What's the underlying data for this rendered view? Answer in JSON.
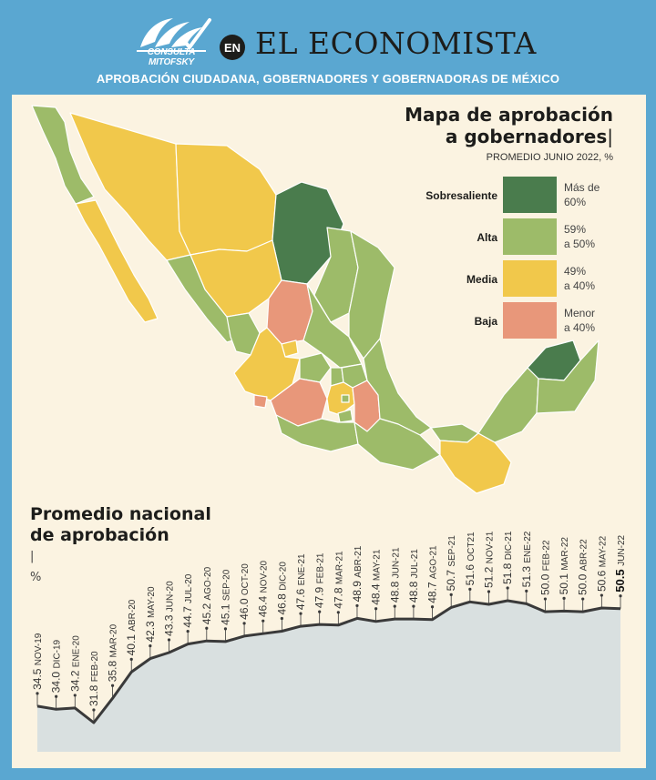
{
  "header": {
    "logo_text": "CONSULTA MITOFSKY",
    "badge": "EN",
    "brand": "EL ECONOMISTA",
    "subtitle": "APROBACIÓN CIUDADANA, GOBERNADORES Y GOBERNADORAS DE MÉXICO"
  },
  "map": {
    "title_line1": "Mapa de aprobación",
    "title_line2": "a gobernadores",
    "subtitle": "PROMEDIO JUNIO 2022, %",
    "legend": [
      {
        "label": "Sobresaliente",
        "desc1": "Más de",
        "desc2": "60%",
        "color": "#4a7c4d"
      },
      {
        "label": "Alta",
        "desc1": "59%",
        "desc2": "a 50%",
        "color": "#9dbb69"
      },
      {
        "label": "Media",
        "desc1": "49%",
        "desc2": "a 40%",
        "color": "#f1c84b"
      },
      {
        "label": "Baja",
        "desc1": "Menor",
        "desc2": "a 40%",
        "color": "#e8977a"
      }
    ]
  },
  "avg": {
    "title_line1": "Promedio nacional",
    "title_line2": "de aprobación",
    "unit": "%"
  },
  "chart_data": {
    "type": "area",
    "title": "Promedio nacional de aprobación",
    "unit": "%",
    "x": [
      "NOV-19",
      "DIC-19",
      "ENE-20",
      "FEB-20",
      "MAR-20",
      "ABR-20",
      "MAY-20",
      "JUN-20",
      "JUL-20",
      "AGO-20",
      "SEP-20",
      "OCT-20",
      "NOV-20",
      "DIC-20",
      "ENE-21",
      "FEB-21",
      "MAR-21",
      "ABR-21",
      "MAY-21",
      "JUN-21",
      "JUL-21",
      "AGO-21",
      "SEP-21",
      "OCT21",
      "NOV-21",
      "DIC-21",
      "ENE-22",
      "FEB-22",
      "MAR-22",
      "ABR-22",
      "MAY-22",
      "JUN-22"
    ],
    "values": [
      34.5,
      34.0,
      34.2,
      31.8,
      35.8,
      40.1,
      42.3,
      43.3,
      44.7,
      45.2,
      45.1,
      46.0,
      46.4,
      46.8,
      47.6,
      47.9,
      47.8,
      48.9,
      48.4,
      48.8,
      48.8,
      48.7,
      50.7,
      51.6,
      51.2,
      51.8,
      51.3,
      50.0,
      50.1,
      50.0,
      50.6,
      50.5
    ],
    "value_labels": [
      "34.5",
      "34.0",
      "34.2",
      "31.8",
      "35.8",
      "40.1",
      "42.3",
      "43.3",
      "44.7",
      "45.2",
      "45.1",
      "46.0",
      "46.4",
      "46.8",
      "47.6",
      "47.9",
      "47.8",
      "48.9",
      "48.4",
      "48.8",
      "48.8",
      "48.7",
      "50.7",
      "51.6",
      "51.2",
      "51.8",
      "51.3",
      "50.0",
      "50.1",
      "50.0",
      "50.6",
      "50.5"
    ],
    "ylim": [
      20,
      56
    ],
    "highlight_last": true,
    "colors": {
      "line": "#3a3a3a",
      "fill": "#d9e0e0"
    }
  },
  "colors": {
    "background": "#5aa7d1",
    "panel": "#fbf3e1",
    "sobresaliente": "#4a7c4d",
    "alta": "#9dbb69",
    "media": "#f1c84b",
    "baja": "#e8977a"
  }
}
